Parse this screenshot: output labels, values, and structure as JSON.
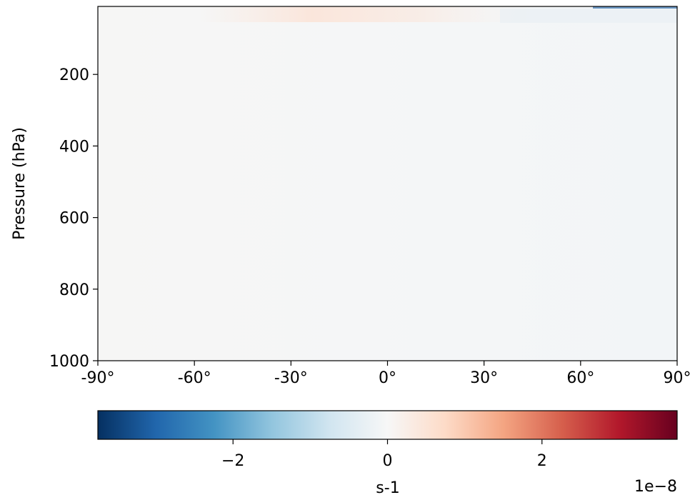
{
  "chart_data": {
    "type": "heatmap",
    "title": "",
    "xlabel": "",
    "ylabel": "Pressure (hPa)",
    "xlim": [
      -90,
      90
    ],
    "ylim": [
      1000,
      10
    ],
    "y_inverted": true,
    "x_ticks": [
      {
        "value": -90,
        "label": "-90°"
      },
      {
        "value": -60,
        "label": "-60°"
      },
      {
        "value": -30,
        "label": "-30°"
      },
      {
        "value": 0,
        "label": "0°"
      },
      {
        "value": 30,
        "label": "30°"
      },
      {
        "value": 60,
        "label": "60°"
      },
      {
        "value": 90,
        "label": "90°"
      }
    ],
    "y_ticks": [
      {
        "value": 200,
        "label": "200"
      },
      {
        "value": 400,
        "label": "400"
      },
      {
        "value": 600,
        "label": "600"
      },
      {
        "value": 800,
        "label": "800"
      },
      {
        "value": 1000,
        "label": "1000"
      }
    ],
    "field_description": "near-zero everywhere; faint positive values near top between about -50° and 30°; faint negative band at top near 90°",
    "colorbar": {
      "colormap": "RdBu_r",
      "vmin": -3.75e-08,
      "vmax": 3.75e-08,
      "label": "s-1",
      "offset_label": "1e−8",
      "ticks": [
        {
          "value": -2e-08,
          "label": "−2"
        },
        {
          "value": 0,
          "label": "0"
        },
        {
          "value": 2e-08,
          "label": "2"
        }
      ],
      "orientation": "horizontal",
      "placement": "bottom"
    },
    "grid": false,
    "background_color": "#f5f6f7"
  }
}
